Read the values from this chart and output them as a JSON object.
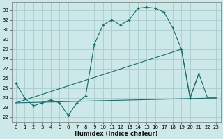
{
  "xlabel": "Humidex (Indice chaleur)",
  "background_color": "#cce8e8",
  "grid_color": "#aacccc",
  "line_color": "#1a6b6b",
  "xlim": [
    -0.5,
    23.5
  ],
  "ylim": [
    21.5,
    33.8
  ],
  "yticks": [
    22,
    23,
    24,
    25,
    26,
    27,
    28,
    29,
    30,
    31,
    32,
    33
  ],
  "xticks": [
    0,
    1,
    2,
    3,
    4,
    5,
    6,
    7,
    8,
    9,
    10,
    11,
    12,
    13,
    14,
    15,
    16,
    17,
    18,
    19,
    20,
    21,
    22,
    23
  ],
  "series1_x": [
    0,
    1,
    2,
    3,
    4,
    5,
    6,
    7,
    8,
    9,
    10,
    11,
    12,
    13,
    14,
    15,
    16,
    17,
    18,
    19,
    20,
    21
  ],
  "series1_y": [
    25.5,
    24.0,
    23.2,
    23.5,
    23.8,
    23.5,
    22.2,
    23.5,
    24.2,
    29.5,
    31.5,
    32.0,
    31.5,
    32.0,
    33.2,
    33.3,
    33.2,
    32.8,
    31.2,
    29.0,
    24.0,
    26.5
  ],
  "series2_x": [
    0,
    23
  ],
  "series2_y": [
    23.5,
    24.0
  ],
  "series3_x": [
    0,
    19,
    20,
    21,
    22,
    23
  ],
  "series3_y": [
    23.5,
    29.0,
    24.0,
    26.5,
    24.0,
    24.0
  ]
}
